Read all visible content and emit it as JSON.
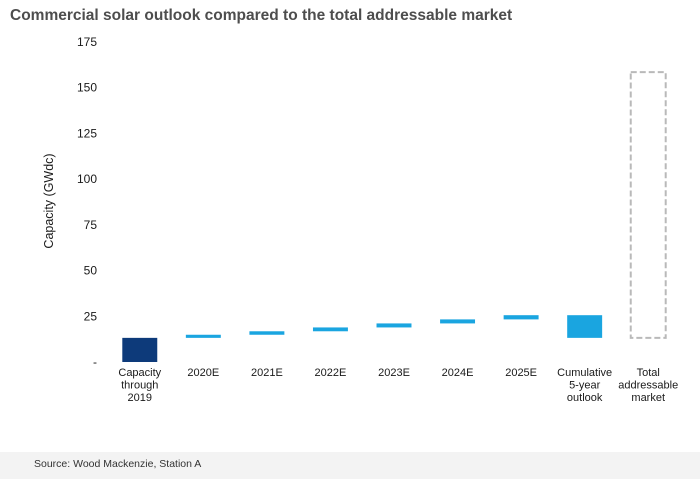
{
  "chart_data": {
    "type": "bar",
    "subtype": "waterfall",
    "title": "Commercial solar outlook compared to the total addressable market",
    "xlabel": "",
    "ylabel": "Capacity (GWdc)",
    "ylim": [
      0,
      175
    ],
    "yticks": [
      {
        "value": 0,
        "label": "-"
      },
      {
        "value": 25,
        "label": "25"
      },
      {
        "value": 50,
        "label": "50"
      },
      {
        "value": 75,
        "label": "75"
      },
      {
        "value": 100,
        "label": "100"
      },
      {
        "value": 125,
        "label": "125"
      },
      {
        "value": 150,
        "label": "150"
      },
      {
        "value": 175,
        "label": "175"
      }
    ],
    "grid": false,
    "categories": [
      [
        "Capacity",
        "through",
        "2019"
      ],
      [
        "2020E"
      ],
      [
        "2021E"
      ],
      [
        "2022E"
      ],
      [
        "2023E"
      ],
      [
        "2024E"
      ],
      [
        "2025E"
      ],
      [
        "Cumulative",
        "5-year",
        "outlook"
      ],
      [
        "Total",
        "addressable",
        "market"
      ]
    ],
    "bars": [
      {
        "start": 0,
        "end": 13.2,
        "style": "solid-dark"
      },
      {
        "start": 13.2,
        "end": 14.9,
        "style": "solid-light"
      },
      {
        "start": 14.9,
        "end": 16.8,
        "style": "solid-light"
      },
      {
        "start": 16.8,
        "end": 18.9,
        "style": "solid-light"
      },
      {
        "start": 18.9,
        "end": 21.1,
        "style": "solid-light"
      },
      {
        "start": 21.1,
        "end": 23.3,
        "style": "solid-light"
      },
      {
        "start": 23.3,
        "end": 25.6,
        "style": "solid-light"
      },
      {
        "start": 13.2,
        "end": 25.6,
        "style": "solid-light"
      },
      {
        "start": 13.2,
        "end": 158.5,
        "style": "dashed-outline"
      }
    ]
  },
  "colors": {
    "dark": "#0d3a7a",
    "light": "#1aa5e0",
    "outline": "#b9b9b9",
    "axis": "#1a1a1a"
  },
  "source": "Source: Wood Mackenzie, Station A"
}
